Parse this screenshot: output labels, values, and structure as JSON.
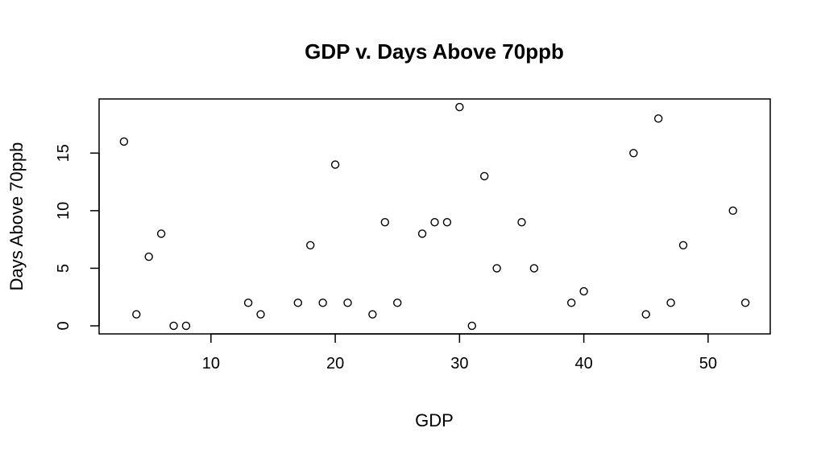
{
  "chart_data": {
    "type": "scatter",
    "title": "GDP v. Days Above 70ppb",
    "xlabel": "GDP",
    "ylabel": "Days Above 70ppb",
    "xlim": [
      1.0,
      55.0
    ],
    "ylim": [
      -0.7,
      19.7
    ],
    "xticks": [
      10,
      20,
      30,
      40,
      50
    ],
    "yticks": [
      0,
      5,
      10,
      15
    ],
    "grid": false,
    "marker": "open-circle",
    "points": [
      {
        "x": 3,
        "y": 16
      },
      {
        "x": 4,
        "y": 1
      },
      {
        "x": 5,
        "y": 6
      },
      {
        "x": 6,
        "y": 8
      },
      {
        "x": 7,
        "y": 0
      },
      {
        "x": 8,
        "y": 0
      },
      {
        "x": 13,
        "y": 2
      },
      {
        "x": 14,
        "y": 1
      },
      {
        "x": 17,
        "y": 2
      },
      {
        "x": 18,
        "y": 7
      },
      {
        "x": 19,
        "y": 2
      },
      {
        "x": 20,
        "y": 14
      },
      {
        "x": 21,
        "y": 2
      },
      {
        "x": 23,
        "y": 1
      },
      {
        "x": 24,
        "y": 9
      },
      {
        "x": 25,
        "y": 2
      },
      {
        "x": 27,
        "y": 8
      },
      {
        "x": 28,
        "y": 9
      },
      {
        "x": 29,
        "y": 9
      },
      {
        "x": 30,
        "y": 19
      },
      {
        "x": 31,
        "y": 0
      },
      {
        "x": 32,
        "y": 13
      },
      {
        "x": 33,
        "y": 5
      },
      {
        "x": 35,
        "y": 9
      },
      {
        "x": 36,
        "y": 5
      },
      {
        "x": 39,
        "y": 2
      },
      {
        "x": 40,
        "y": 3
      },
      {
        "x": 44,
        "y": 15
      },
      {
        "x": 45,
        "y": 1
      },
      {
        "x": 46,
        "y": 18
      },
      {
        "x": 47,
        "y": 2
      },
      {
        "x": 48,
        "y": 7
      },
      {
        "x": 52,
        "y": 10
      },
      {
        "x": 53,
        "y": 2
      }
    ]
  },
  "colors": {
    "point_stroke": "#000000",
    "axis": "#000000",
    "background": "#ffffff"
  }
}
